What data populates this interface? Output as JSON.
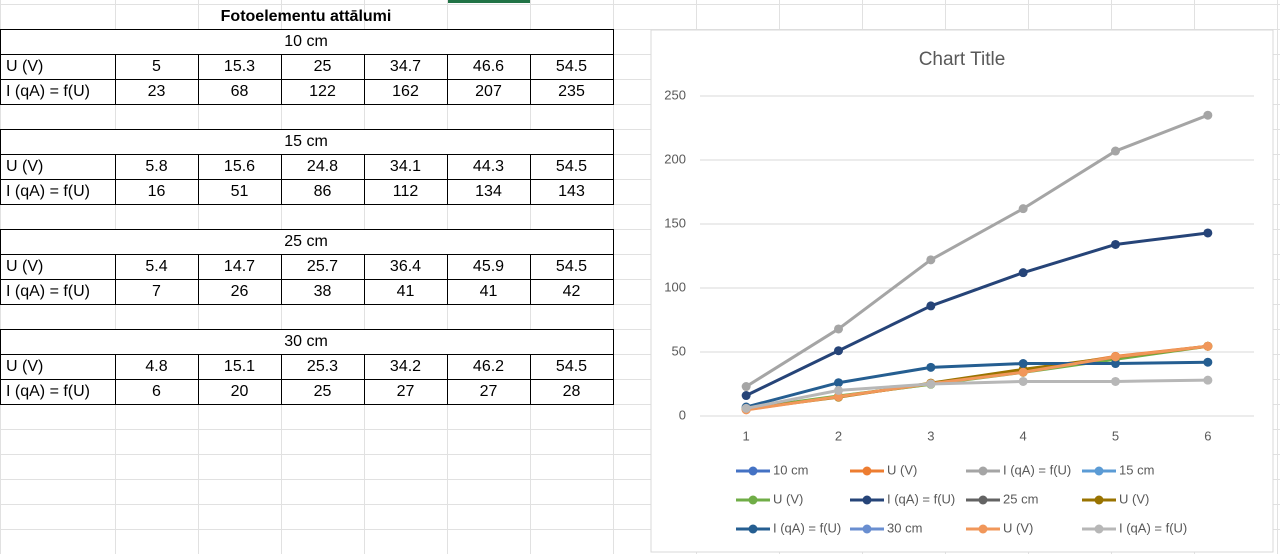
{
  "sheet": {
    "title": "Fotoelementu attālumi",
    "blocks": [
      {
        "heading": "10 cm",
        "rows": [
          [
            "U (V)",
            5,
            15.3,
            25,
            34.7,
            46.6,
            54.5
          ],
          [
            "I (qA) = f(U)",
            23,
            68,
            122,
            162,
            207,
            235
          ]
        ]
      },
      {
        "heading": "15 cm",
        "rows": [
          [
            "U (V)",
            5.8,
            15.6,
            24.8,
            34.1,
            44.3,
            54.5
          ],
          [
            "I (qA) = f(U)",
            16,
            51,
            86,
            112,
            134,
            143
          ]
        ]
      },
      {
        "heading": "25 cm",
        "rows": [
          [
            "U (V)",
            5.4,
            14.7,
            25.7,
            36.4,
            45.9,
            54.5
          ],
          [
            "I (qA) = f(U)",
            7,
            26,
            38,
            41,
            41,
            42
          ]
        ]
      },
      {
        "heading": "30 cm",
        "rows": [
          [
            "U (V)",
            4.8,
            15.1,
            25.3,
            34.2,
            46.2,
            54.5
          ],
          [
            "I (qA) = f(U)",
            6,
            20,
            25,
            27,
            27,
            28
          ]
        ]
      }
    ]
  },
  "chart_data": {
    "type": "line",
    "title": "Chart Title",
    "categories": [
      1,
      2,
      3,
      4,
      5,
      6
    ],
    "series": [
      {
        "name": "10 cm",
        "color": "#4472c4",
        "values": [
          null,
          null,
          null,
          null,
          null,
          null
        ]
      },
      {
        "name": "U (V)",
        "color": "#ed7d31",
        "values": [
          5,
          15.3,
          25,
          34.7,
          46.6,
          54.5
        ]
      },
      {
        "name": "I (qA) = f(U)",
        "color": "#a5a5a5",
        "values": [
          23,
          68,
          122,
          162,
          207,
          235
        ]
      },
      {
        "name": "15 cm",
        "color": "#5b9bd5",
        "values": [
          null,
          null,
          null,
          null,
          null,
          null
        ]
      },
      {
        "name": "U (V)",
        "color": "#70ad47",
        "values": [
          5.8,
          15.6,
          24.8,
          34.1,
          44.3,
          54.5
        ]
      },
      {
        "name": "I (qA) = f(U)",
        "color": "#264478",
        "values": [
          16,
          51,
          86,
          112,
          134,
          143
        ]
      },
      {
        "name": "25 cm",
        "color": "#636363",
        "values": [
          null,
          null,
          null,
          null,
          null,
          null
        ]
      },
      {
        "name": "U (V)",
        "color": "#997300",
        "values": [
          5.4,
          14.7,
          25.7,
          36.4,
          45.9,
          54.5
        ]
      },
      {
        "name": "I (qA) = f(U)",
        "color": "#255e91",
        "values": [
          7,
          26,
          38,
          41,
          41,
          42
        ]
      },
      {
        "name": "30 cm",
        "color": "#698ed0",
        "values": [
          null,
          null,
          null,
          null,
          null,
          null
        ]
      },
      {
        "name": "U (V)",
        "color": "#f1975a",
        "values": [
          4.8,
          15.1,
          25.3,
          34.2,
          46.2,
          54.5
        ]
      },
      {
        "name": "I (qA) = f(U)",
        "color": "#b7b7b7",
        "values": [
          6,
          20,
          25,
          27,
          27,
          28
        ]
      }
    ],
    "ylim": [
      0,
      250
    ],
    "yticks": [
      0,
      50,
      100,
      150,
      200,
      250
    ],
    "grid": true,
    "legend": "bottom"
  }
}
